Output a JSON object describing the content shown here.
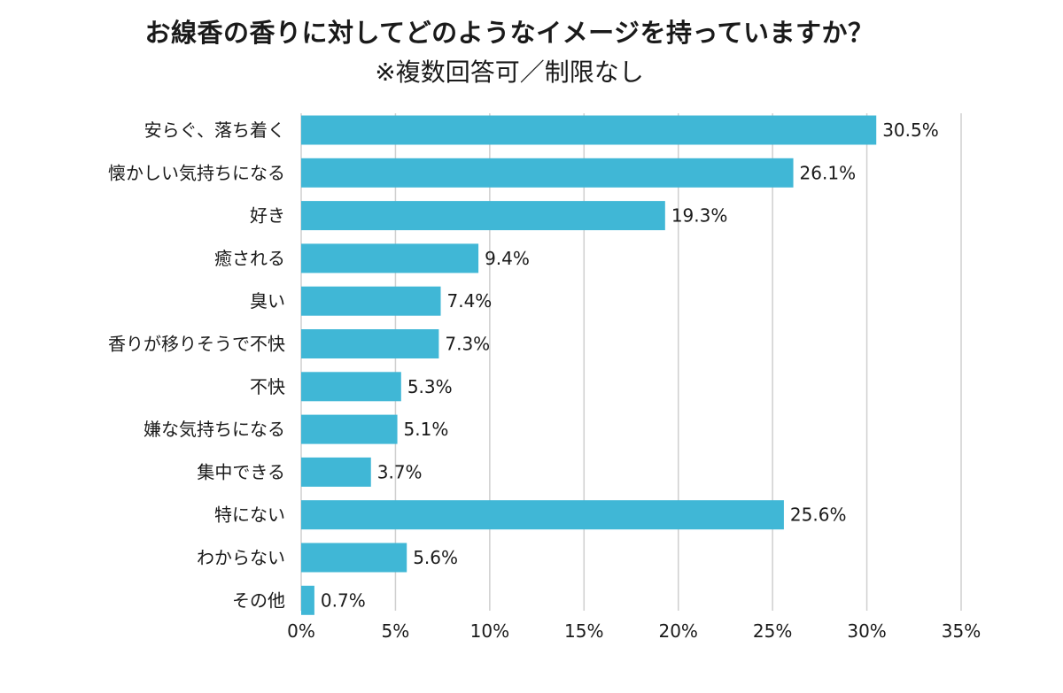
{
  "chart_data": {
    "type": "bar",
    "orientation": "horizontal",
    "title": "お線香の香りに対してどのようなイメージを持っていますか？",
    "subtitle": "※複数回答可／制限なし",
    "xlabel": "",
    "ylabel": "",
    "xlim": [
      0,
      35
    ],
    "x_ticks": [
      0,
      5,
      10,
      15,
      20,
      25,
      30,
      35
    ],
    "x_tick_suffix": "%",
    "grid": true,
    "bar_color": "#40b7d6",
    "categories": [
      "安らぐ、落ち着く",
      "懐かしい気持ちになる",
      "好き",
      "癒される",
      "臭い",
      "香りが移りそうで不快",
      "不快",
      "嫌な気持ちになる",
      "集中できる",
      "特にない",
      "わからない",
      "その他"
    ],
    "values": [
      30.5,
      26.1,
      19.3,
      9.4,
      7.4,
      7.3,
      5.3,
      5.1,
      3.7,
      25.6,
      5.6,
      0.7
    ],
    "value_suffix": "%"
  }
}
